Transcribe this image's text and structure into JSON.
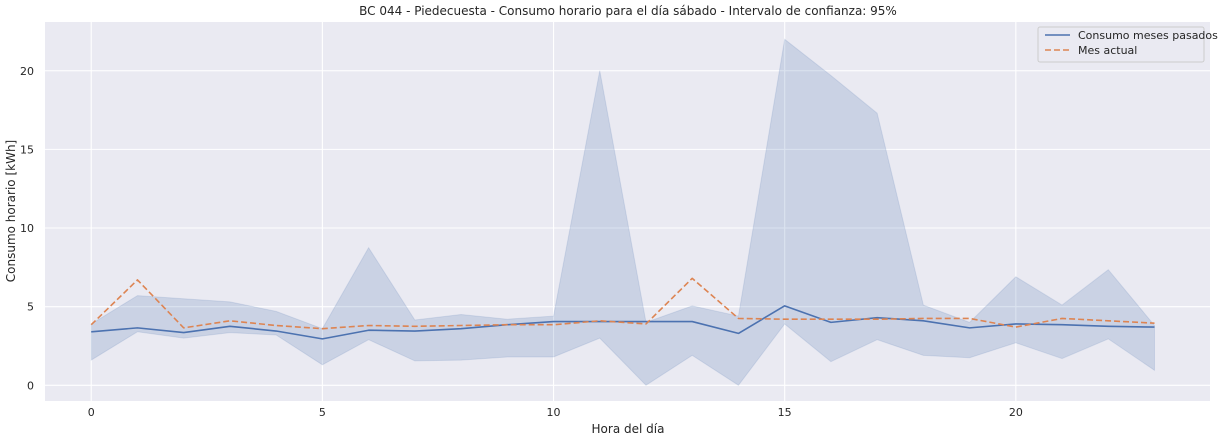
{
  "chart_data": {
    "type": "line",
    "title": "BC 044 - Piedecuesta - Consumo horario para el día sábado - Intervalo de confianza: 95%",
    "xlabel": "Hora del día",
    "ylabel": "Consumo horario [kWh]",
    "xlim": [
      -1,
      24.2
    ],
    "ylim": [
      -1,
      23.1
    ],
    "xticks": [
      0,
      5,
      10,
      15,
      20
    ],
    "yticks": [
      0,
      5,
      10,
      15,
      20
    ],
    "grid": true,
    "legend_position": "top-right",
    "x": [
      0,
      1,
      2,
      3,
      4,
      5,
      6,
      7,
      8,
      9,
      10,
      11,
      12,
      13,
      14,
      15,
      16,
      17,
      18,
      19,
      20,
      21,
      22,
      23
    ],
    "series": [
      {
        "name": "Consumo meses pasados",
        "style": "solid",
        "color": "#4c72b0",
        "values": [
          3.4,
          3.65,
          3.35,
          3.75,
          3.45,
          2.95,
          3.5,
          3.45,
          3.6,
          3.85,
          4.05,
          4.05,
          4.05,
          4.05,
          3.3,
          5.05,
          4.0,
          4.3,
          4.1,
          3.65,
          3.9,
          3.85,
          3.75,
          3.7
        ],
        "ci_lower": [
          1.6,
          3.4,
          3.0,
          3.35,
          3.2,
          1.3,
          2.9,
          1.55,
          1.6,
          1.8,
          1.8,
          3.0,
          0.0,
          1.9,
          0.0,
          3.9,
          1.5,
          2.9,
          1.9,
          1.75,
          2.7,
          1.7,
          2.95,
          0.95
        ],
        "ci_upper": [
          3.9,
          5.7,
          5.5,
          5.3,
          4.7,
          3.6,
          8.75,
          4.15,
          4.5,
          4.2,
          4.4,
          20.0,
          4.0,
          5.05,
          4.4,
          22.0,
          19.7,
          17.3,
          5.1,
          4.0,
          6.9,
          5.1,
          7.35,
          3.8
        ]
      },
      {
        "name": "Mes actual",
        "style": "dashed",
        "color": "#dd8452",
        "values": [
          3.85,
          6.7,
          3.65,
          4.1,
          3.8,
          3.6,
          3.8,
          3.75,
          3.8,
          3.85,
          3.85,
          4.1,
          3.9,
          6.8,
          4.25,
          4.2,
          4.2,
          4.2,
          4.25,
          4.25,
          3.7,
          4.25,
          4.1,
          3.95
        ]
      }
    ],
    "ci_color": "#4c72b0"
  }
}
